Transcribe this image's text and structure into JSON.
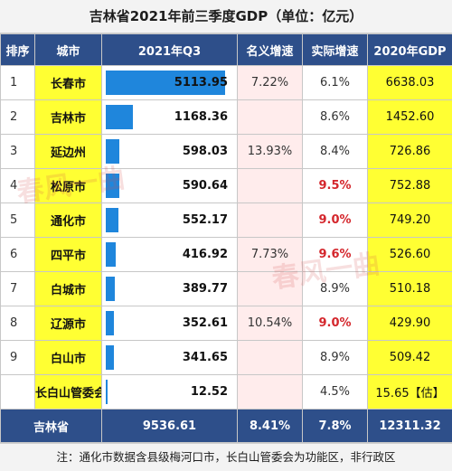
{
  "title": "吉林省2021年前三季度GDP（单位：亿元）",
  "headers": {
    "rank": "排序",
    "city": "城市",
    "gdp": "2021年Q3",
    "nominal": "名义增速",
    "real": "实际增速",
    "prev": "2020年GDP"
  },
  "colors": {
    "header_bg": "#2e4f8a",
    "bar": "#1f86dc",
    "highlight_cell": "#ffff33",
    "nominal_bg": "#ffecec",
    "accent_red": "#d4262c"
  },
  "chart_data": {
    "type": "table",
    "gdp_max": 5113.95,
    "rows": [
      {
        "rank": "1",
        "city": "长春市",
        "gdp": "5113.95",
        "gdp_value": 5113.95,
        "nominal": "7.22%",
        "real": "6.1%",
        "real_highlight": false,
        "prev": "6638.03"
      },
      {
        "rank": "2",
        "city": "吉林市",
        "gdp": "1168.36",
        "gdp_value": 1168.36,
        "nominal": "",
        "real": "8.6%",
        "real_highlight": false,
        "prev": "1452.60"
      },
      {
        "rank": "3",
        "city": "延边州",
        "gdp": "598.03",
        "gdp_value": 598.03,
        "nominal": "13.93%",
        "real": "8.4%",
        "real_highlight": false,
        "prev": "726.86"
      },
      {
        "rank": "4",
        "city": "松原市",
        "gdp": "590.64",
        "gdp_value": 590.64,
        "nominal": "",
        "real": "9.5%",
        "real_highlight": true,
        "prev": "752.88"
      },
      {
        "rank": "5",
        "city": "通化市",
        "gdp": "552.17",
        "gdp_value": 552.17,
        "nominal": "",
        "real": "9.0%",
        "real_highlight": true,
        "prev": "749.20"
      },
      {
        "rank": "6",
        "city": "四平市",
        "gdp": "416.92",
        "gdp_value": 416.92,
        "nominal": "7.73%",
        "real": "9.6%",
        "real_highlight": true,
        "prev": "526.60"
      },
      {
        "rank": "7",
        "city": "白城市",
        "gdp": "389.77",
        "gdp_value": 389.77,
        "nominal": "",
        "real": "8.9%",
        "real_highlight": false,
        "prev": "510.18"
      },
      {
        "rank": "8",
        "city": "辽源市",
        "gdp": "352.61",
        "gdp_value": 352.61,
        "nominal": "10.54%",
        "real": "9.0%",
        "real_highlight": true,
        "prev": "429.90"
      },
      {
        "rank": "9",
        "city": "白山市",
        "gdp": "341.65",
        "gdp_value": 341.65,
        "nominal": "",
        "real": "8.9%",
        "real_highlight": false,
        "prev": "509.42"
      },
      {
        "rank": "",
        "city": "长白山管委会",
        "gdp": "12.52",
        "gdp_value": 12.52,
        "nominal": "",
        "real": "4.5%",
        "real_highlight": false,
        "prev": "15.65【估】"
      }
    ],
    "total": {
      "city": "吉林省",
      "gdp": "9536.61",
      "nominal": "8.41%",
      "real": "7.8%",
      "prev": "12311.32"
    }
  },
  "footer": "注：通化市数据含县级梅河口市，长白山管委会为功能区，非行政区",
  "watermark": "春风一曲"
}
